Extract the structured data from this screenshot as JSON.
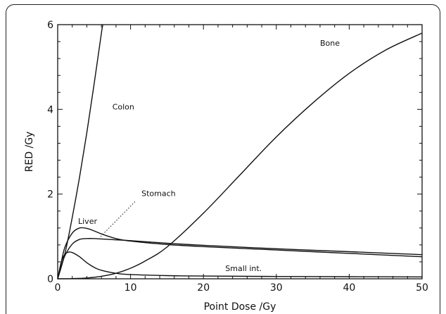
{
  "chart_data": {
    "type": "line",
    "xlabel": "Point Dose /Gy",
    "ylabel": "RED /Gy",
    "xlim": [
      0,
      50
    ],
    "ylim": [
      0,
      6
    ],
    "xticks": [
      0,
      10,
      20,
      30,
      40,
      50
    ],
    "yticks": [
      0,
      2,
      4,
      6
    ],
    "grid": false,
    "series": [
      {
        "name": "Colon",
        "x": [
          0,
          1,
          2,
          3,
          4,
          5,
          6,
          6.2
        ],
        "y": [
          0,
          0.6,
          1.45,
          2.4,
          3.45,
          4.6,
          5.8,
          6.0
        ]
      },
      {
        "name": "Bone",
        "x": [
          0,
          2,
          4,
          6,
          8,
          10,
          12,
          15,
          20,
          25,
          30,
          35,
          40,
          45,
          50
        ],
        "y": [
          0,
          0.005,
          0.02,
          0.06,
          0.13,
          0.25,
          0.42,
          0.75,
          1.55,
          2.45,
          3.35,
          4.15,
          4.85,
          5.4,
          5.8
        ]
      },
      {
        "name": "Liver",
        "x": [
          0,
          0.5,
          1,
          2,
          3,
          4,
          5,
          6,
          8,
          10,
          15,
          20,
          30,
          40,
          50
        ],
        "y": [
          0,
          0.4,
          0.75,
          1.08,
          1.2,
          1.19,
          1.13,
          1.06,
          0.95,
          0.89,
          0.81,
          0.76,
          0.68,
          0.6,
          0.52
        ]
      },
      {
        "name": "Stomach",
        "x": [
          0,
          0.5,
          1,
          2,
          3,
          4,
          5,
          6,
          8,
          10,
          15,
          20,
          30,
          40,
          50
        ],
        "y": [
          0,
          0.3,
          0.55,
          0.82,
          0.93,
          0.95,
          0.95,
          0.94,
          0.92,
          0.9,
          0.84,
          0.79,
          0.71,
          0.64,
          0.57
        ]
      },
      {
        "name": "Small int.",
        "x": [
          0,
          0.5,
          1,
          1.5,
          2,
          3,
          4,
          5,
          6,
          8,
          10,
          15,
          20,
          30,
          40,
          50
        ],
        "y": [
          0,
          0.4,
          0.58,
          0.63,
          0.62,
          0.52,
          0.38,
          0.27,
          0.2,
          0.13,
          0.1,
          0.075,
          0.065,
          0.055,
          0.05,
          0.045
        ]
      }
    ],
    "annotations": [
      {
        "text": "Colon",
        "x": 7.5,
        "y": 4.0
      },
      {
        "text": "Bone",
        "x": 36,
        "y": 5.5
      },
      {
        "text": "Stomach",
        "x": 11.5,
        "y": 1.95
      },
      {
        "text": "Liver",
        "x": 2.8,
        "y": 1.3
      },
      {
        "text": "Small int.",
        "x": 23,
        "y": 0.18
      }
    ]
  }
}
